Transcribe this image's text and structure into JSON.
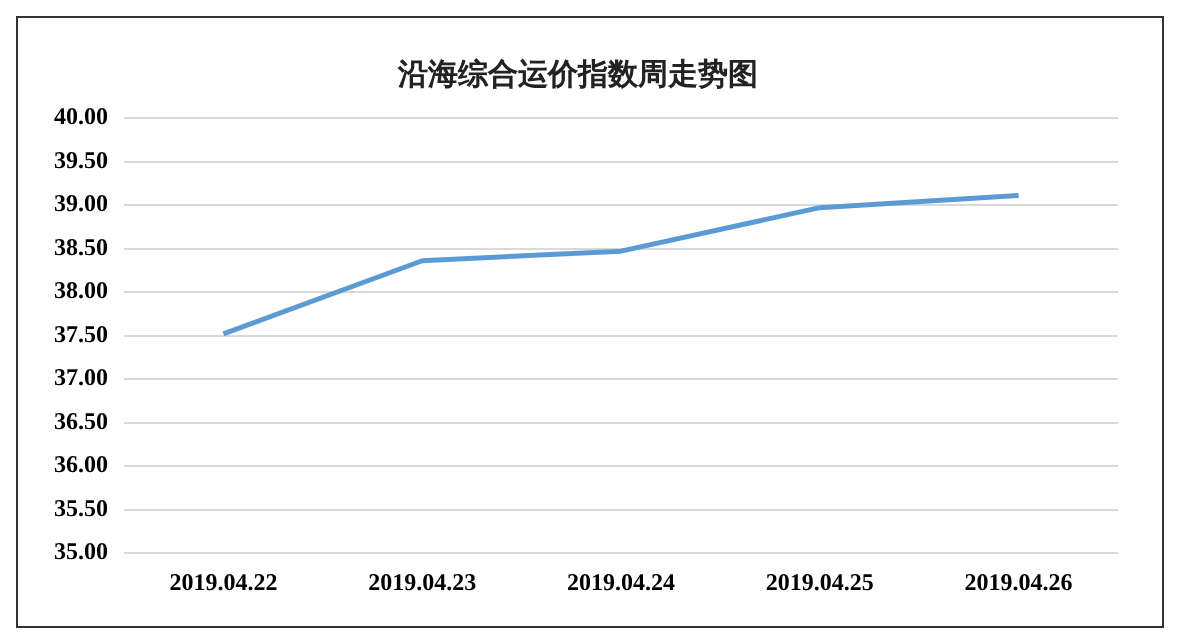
{
  "chart_data": {
    "type": "line",
    "title": "沿海综合运价指数周走势图",
    "categories": [
      "2019.04.22",
      "2019.04.23",
      "2019.04.24",
      "2019.04.25",
      "2019.04.26"
    ],
    "series": [
      {
        "color": "#5b9bd5",
        "values": [
          37.52,
          38.36,
          38.47,
          38.97,
          39.11
        ]
      }
    ],
    "ylim": [
      35,
      40
    ],
    "yticks": [
      {
        "value": 35,
        "label": "35.00"
      },
      {
        "value": 35.5,
        "label": "35.50"
      },
      {
        "value": 36,
        "label": "36.00"
      },
      {
        "value": 36.5,
        "label": "36.50"
      },
      {
        "value": 37,
        "label": "37.00"
      },
      {
        "value": 37.5,
        "label": "37.50"
      },
      {
        "value": 38,
        "label": "38.00"
      },
      {
        "value": 38.5,
        "label": "38.50"
      },
      {
        "value": 39,
        "label": "39.00"
      },
      {
        "value": 39.5,
        "label": "39.50"
      },
      {
        "value": 40,
        "label": "40.00"
      }
    ],
    "grid": "y",
    "marker": "none",
    "line_style": "solid",
    "legend": false
  }
}
